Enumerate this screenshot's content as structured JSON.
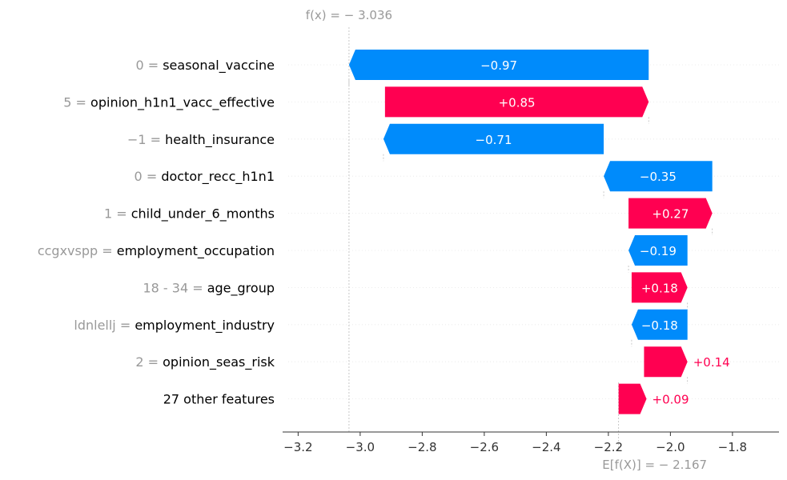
{
  "chart_data": {
    "type": "waterfall",
    "f_x": {
      "label": "f(x) = − 3.036",
      "value": -3.036
    },
    "expected": {
      "label": "E[f(X)] = − 2.167",
      "value": -2.167
    },
    "xlim": [
      -3.25,
      -1.65
    ],
    "x_ticks": [
      {
        "value": -3.2,
        "label": "−3.2"
      },
      {
        "value": -3.0,
        "label": "−3.0"
      },
      {
        "value": -2.8,
        "label": "−2.8"
      },
      {
        "value": -2.6,
        "label": "−2.6"
      },
      {
        "value": -2.4,
        "label": "−2.4"
      },
      {
        "value": -2.2,
        "label": "−2.2"
      },
      {
        "value": -2.0,
        "label": "−2.0"
      },
      {
        "value": -1.8,
        "label": "−1.8"
      }
    ],
    "colors": {
      "positive": "#ff0051",
      "negative": "#008bfb"
    },
    "features": [
      {
        "value_label": "0 = ",
        "name": "seasonal_vaccine",
        "contribution": -0.97,
        "start": -2.07,
        "end": -3.036,
        "label": "−0.97"
      },
      {
        "value_label": "5 = ",
        "name": "opinion_h1n1_vacc_effective",
        "contribution": 0.85,
        "start": -2.92,
        "end": -2.07,
        "label": "+0.85"
      },
      {
        "value_label": "−1 = ",
        "name": "health_insurance",
        "contribution": -0.71,
        "start": -2.215,
        "end": -2.925,
        "label": "−0.71"
      },
      {
        "value_label": "0 = ",
        "name": "doctor_recc_h1n1",
        "contribution": -0.35,
        "start": -1.865,
        "end": -2.215,
        "label": "−0.35"
      },
      {
        "value_label": "1 = ",
        "name": "child_under_6_months",
        "contribution": 0.27,
        "start": -2.135,
        "end": -1.865,
        "label": "+0.27"
      },
      {
        "value_label": "ccgxvspp = ",
        "name": "employment_occupation",
        "contribution": -0.19,
        "start": -1.945,
        "end": -2.135,
        "label": "−0.19"
      },
      {
        "value_label": "18 - 34  = ",
        "name": "age_group",
        "contribution": 0.18,
        "start": -2.125,
        "end": -1.945,
        "label": "+0.18"
      },
      {
        "value_label": "ldnlellj = ",
        "name": "employment_industry",
        "contribution": -0.18,
        "start": -1.945,
        "end": -2.125,
        "label": "−0.18"
      },
      {
        "value_label": "2 = ",
        "name": "opinion_seas_risk",
        "contribution": 0.14,
        "start": -2.085,
        "end": -1.945,
        "label": "+0.14"
      },
      {
        "value_label": "",
        "name": "27 other features",
        "contribution": 0.09,
        "start": -2.167,
        "end": -2.077,
        "label": "+0.09"
      }
    ]
  }
}
